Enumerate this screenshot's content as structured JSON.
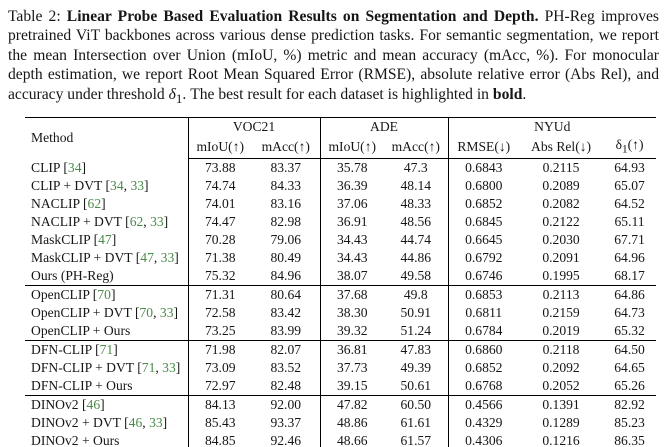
{
  "page": {
    "background": "#ffffff",
    "text_color": "#161616",
    "cite_color": "#4a8a4a"
  },
  "caption": {
    "tag": "Table 2: ",
    "title_bold": "Linear Probe Based Evaluation Results on Segmentation and Depth.",
    "body_a": " PH-Reg improves pretrained ViT backbones across various dense prediction tasks. For semantic segmentation, we report the mean Intersection over Union (mIoU, %) metric and mean accuracy (mAcc, %). For monocular depth estimation, we report Root Mean Squared Error (RMSE), absolute relative error (Abs Rel), and accuracy under threshold ",
    "delta_symbol": "δ",
    "delta_sub": "1",
    "body_b": ". The best result for each dataset is highlighted in ",
    "bold_word": "bold",
    "body_c": "."
  },
  "table": {
    "method_header": "Method",
    "col_groups": [
      {
        "label": "VOC21",
        "sub": [
          "mIoU(↑)",
          "mAcc(↑)"
        ]
      },
      {
        "label": "ADE",
        "sub": [
          "mIoU(↑)",
          "mAcc(↑)"
        ]
      },
      {
        "label": "NYUd",
        "sub": [
          "RMSE(↓)",
          "Abs Rel(↓)",
          "δ1(↑)"
        ]
      }
    ],
    "rows": [
      {
        "method": "CLIP",
        "cites": [
          "34"
        ],
        "group_start": false,
        "values": [
          "73.88",
          "83.37",
          "35.78",
          "47.3",
          "0.6843",
          "0.2115",
          "64.93"
        ],
        "bold": [
          0,
          0,
          0,
          0,
          0,
          0,
          0
        ]
      },
      {
        "method": "CLIP + DVT",
        "cites": [
          "34",
          "33"
        ],
        "group_start": false,
        "values": [
          "74.74",
          "84.33",
          "36.39",
          "48.14",
          "0.6800",
          "0.2089",
          "65.07"
        ],
        "bold": [
          0,
          0,
          0,
          0,
          0,
          0,
          0
        ]
      },
      {
        "method": "NACLIP",
        "cites": [
          "62"
        ],
        "group_start": false,
        "values": [
          "74.01",
          "83.16",
          "37.06",
          "48.33",
          "0.6852",
          "0.2082",
          "64.52"
        ],
        "bold": [
          0,
          0,
          0,
          0,
          0,
          0,
          0
        ]
      },
      {
        "method": "NACLIP + DVT",
        "cites": [
          "62",
          "33"
        ],
        "group_start": false,
        "values": [
          "74.47",
          "82.98",
          "36.91",
          "48.56",
          "0.6845",
          "0.2122",
          "65.11"
        ],
        "bold": [
          0,
          0,
          0,
          0,
          0,
          0,
          0
        ]
      },
      {
        "method": "MaskCLIP",
        "cites": [
          "47"
        ],
        "group_start": false,
        "values": [
          "70.28",
          "79.06",
          "34.43",
          "44.74",
          "0.6645",
          "0.2030",
          "67.71"
        ],
        "bold": [
          0,
          0,
          0,
          0,
          1,
          0,
          0
        ]
      },
      {
        "method": "MaskCLIP + DVT",
        "cites": [
          "47",
          "33"
        ],
        "group_start": false,
        "values": [
          "71.38",
          "80.49",
          "34.43",
          "44.86",
          "0.6792",
          "0.2091",
          "64.96"
        ],
        "bold": [
          0,
          0,
          0,
          0,
          0,
          0,
          0
        ]
      },
      {
        "method": "Ours (PH-Reg)",
        "cites": [],
        "group_start": false,
        "values": [
          "75.32",
          "84.96",
          "38.07",
          "49.58",
          "0.6746",
          "0.1995",
          "68.17"
        ],
        "bold": [
          1,
          1,
          1,
          1,
          0,
          1,
          1
        ]
      },
      {
        "method": "OpenCLIP",
        "cites": [
          "70"
        ],
        "group_start": true,
        "values": [
          "71.31",
          "80.64",
          "37.68",
          "49.8",
          "0.6853",
          "0.2113",
          "64.86"
        ],
        "bold": [
          0,
          0,
          0,
          0,
          0,
          0,
          0
        ]
      },
      {
        "method": "OpenCLIP + DVT",
        "cites": [
          "70",
          "33"
        ],
        "group_start": false,
        "values": [
          "72.58",
          "83.42",
          "38.30",
          "50.91",
          "0.6811",
          "0.2159",
          "64.73"
        ],
        "bold": [
          0,
          0,
          0,
          0,
          0,
          0,
          0
        ]
      },
      {
        "method": "OpenCLIP + Ours",
        "cites": [],
        "group_start": false,
        "values": [
          "73.25",
          "83.99",
          "39.32",
          "51.24",
          "0.6784",
          "0.2019",
          "65.32"
        ],
        "bold": [
          1,
          1,
          1,
          1,
          1,
          1,
          1
        ]
      },
      {
        "method": "DFN-CLIP",
        "cites": [
          "71"
        ],
        "group_start": true,
        "values": [
          "71.98",
          "82.07",
          "36.81",
          "47.83",
          "0.6860",
          "0.2118",
          "64.50"
        ],
        "bold": [
          0,
          0,
          0,
          0,
          0,
          0,
          0
        ]
      },
      {
        "method": "DFN-CLIP + DVT",
        "cites": [
          "71",
          "33"
        ],
        "group_start": false,
        "values": [
          "73.09",
          "83.52",
          "37.73",
          "49.39",
          "0.6852",
          "0.2092",
          "64.65"
        ],
        "bold": [
          1,
          1,
          0,
          0,
          0,
          0,
          0
        ]
      },
      {
        "method": "DFN-CLIP + Ours",
        "cites": [],
        "group_start": false,
        "values": [
          "72.97",
          "82.48",
          "39.15",
          "50.61",
          "0.6768",
          "0.2052",
          "65.26"
        ],
        "bold": [
          0,
          0,
          1,
          1,
          1,
          1,
          1
        ]
      },
      {
        "method": "DINOv2",
        "cites": [
          "46"
        ],
        "group_start": true,
        "values": [
          "84.13",
          "92.00",
          "47.82",
          "60.50",
          "0.4566",
          "0.1391",
          "82.92"
        ],
        "bold": [
          0,
          0,
          0,
          0,
          0,
          0,
          0
        ]
      },
      {
        "method": "DINOv2 + DVT",
        "cites": [
          "46",
          "33"
        ],
        "group_start": false,
        "values": [
          "85.43",
          "93.37",
          "48.86",
          "61.61",
          "0.4329",
          "0.1289",
          "85.23"
        ],
        "bold": [
          1,
          1,
          1,
          1,
          0,
          0,
          0
        ]
      },
      {
        "method": "DINOv2 + Ours",
        "cites": [],
        "group_start": false,
        "values": [
          "84.85",
          "92.46",
          "48.66",
          "61.57",
          "0.4306",
          "0.1216",
          "86.35"
        ],
        "bold": [
          0,
          0,
          0,
          0,
          1,
          1,
          1
        ]
      }
    ]
  }
}
